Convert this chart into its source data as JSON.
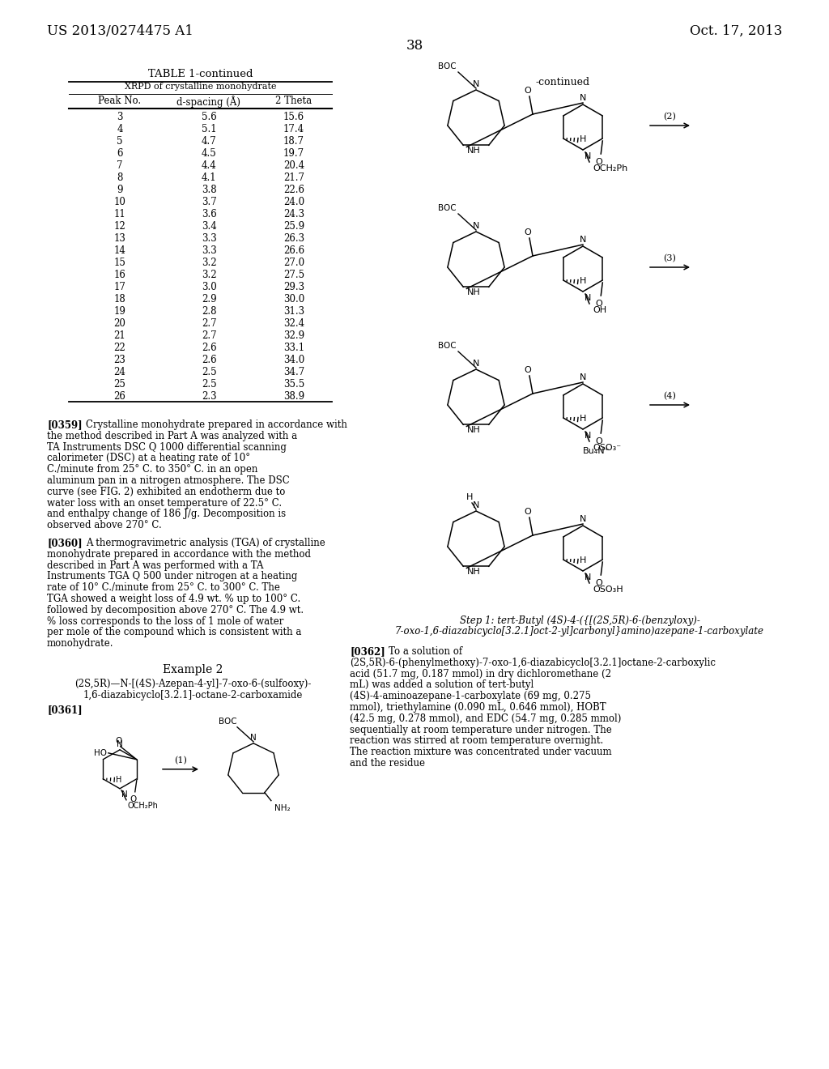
{
  "bg_color": "#ffffff",
  "header_left": "US 2013/0274475 A1",
  "header_right": "Oct. 17, 2013",
  "page_number": "38",
  "table_title": "TABLE 1-continued",
  "table_subtitle": "XRPD of crystalline monohydrate",
  "col_headers": [
    "Peak No.",
    "d-spacing (Å)",
    "2 Theta"
  ],
  "table_data": [
    [
      3,
      5.6,
      15.6
    ],
    [
      4,
      5.1,
      17.4
    ],
    [
      5,
      4.7,
      18.7
    ],
    [
      6,
      4.5,
      19.7
    ],
    [
      7,
      4.4,
      20.4
    ],
    [
      8,
      4.1,
      21.7
    ],
    [
      9,
      3.8,
      22.6
    ],
    [
      10,
      3.7,
      24.0
    ],
    [
      11,
      3.6,
      24.3
    ],
    [
      12,
      3.4,
      25.9
    ],
    [
      13,
      3.3,
      26.3
    ],
    [
      14,
      3.3,
      26.6
    ],
    [
      15,
      3.2,
      27.0
    ],
    [
      16,
      3.2,
      27.5
    ],
    [
      17,
      3.0,
      29.3
    ],
    [
      18,
      2.9,
      30.0
    ],
    [
      19,
      2.8,
      31.3
    ],
    [
      20,
      2.7,
      32.4
    ],
    [
      21,
      2.7,
      32.9
    ],
    [
      22,
      2.6,
      33.1
    ],
    [
      23,
      2.6,
      34.0
    ],
    [
      24,
      2.5,
      34.7
    ],
    [
      25,
      2.5,
      35.5
    ],
    [
      26,
      2.3,
      38.9
    ]
  ],
  "para0359_tag": "[0359]",
  "para0359_body": "Crystalline monohydrate prepared in accordance with the method described in Part A was analyzed with a TA Instruments DSC Q 1000 differential scanning calorimeter (DSC) at a heating rate of 10° C./minute from 25° C. to 350° C. in an open aluminum pan in a nitrogen atmosphere. The DSC curve (see FIG. 2) exhibited an endotherm due to water loss with an onset temperature of 22.5° C. and enthalpy change of 186 J/g. Decomposition is observed above 270° C.",
  "para0360_tag": "[0360]",
  "para0360_body": "A thermogravimetric analysis (TGA) of crystalline monohydrate prepared in accordance with the method described in Part A was performed with a TA Instruments TGA Q 500 under nitrogen at a heating rate of 10° C./minute from 25° C. to 300° C. The TGA showed a weight loss of 4.9 wt. % up to 100° C. followed by decomposition above 270° C. The 4.9 wt. % loss corresponds to the loss of 1 mole of water per mole of the compound which is consistent with a monohydrate.",
  "example2_title": "Example 2",
  "example2_name_line1": "(2S,5R)—N-[(4S)-Azepan-4-yl]-7-oxo-6-(sulfooxy)-",
  "example2_name_line2": "1,6-diazabicyclo[3.2.1]-octane-2-carboxamide",
  "para0361_tag": "[0361]",
  "right_continued": "-continued",
  "step1_line1": "Step 1: tert-Butyl (4S)-4-({[(2S,5R)-6-(benzyloxy)-",
  "step1_line2": "7-oxo-1,6-diazabicyclo[3.2.1]oct-2-yl]carbonyl}amino)azepane-1-carboxylate",
  "para0362_tag": "[0362]",
  "para0362_body": "To a solution of (2S,5R)-6-(phenylmethoxy)-7-oxo-1,6-diazabicyclo[3.2.1]octane-2-carboxylic acid (51.7 mg, 0.187 mmol) in dry dichloromethane (2 mL) was added a solution of tert-butyl (4S)-4-aminoazepane-1-carboxylate (69 mg, 0.275 mmol), triethylamine (0.090 mL, 0.646 mmol), HOBT (42.5 mg, 0.278 mmol), and EDC (54.7 mg, 0.285 mmol) sequentially at room temperature under nitrogen. The reaction was stirred at room temperature overnight. The reaction mixture was concentrated under vacuum and the residue"
}
